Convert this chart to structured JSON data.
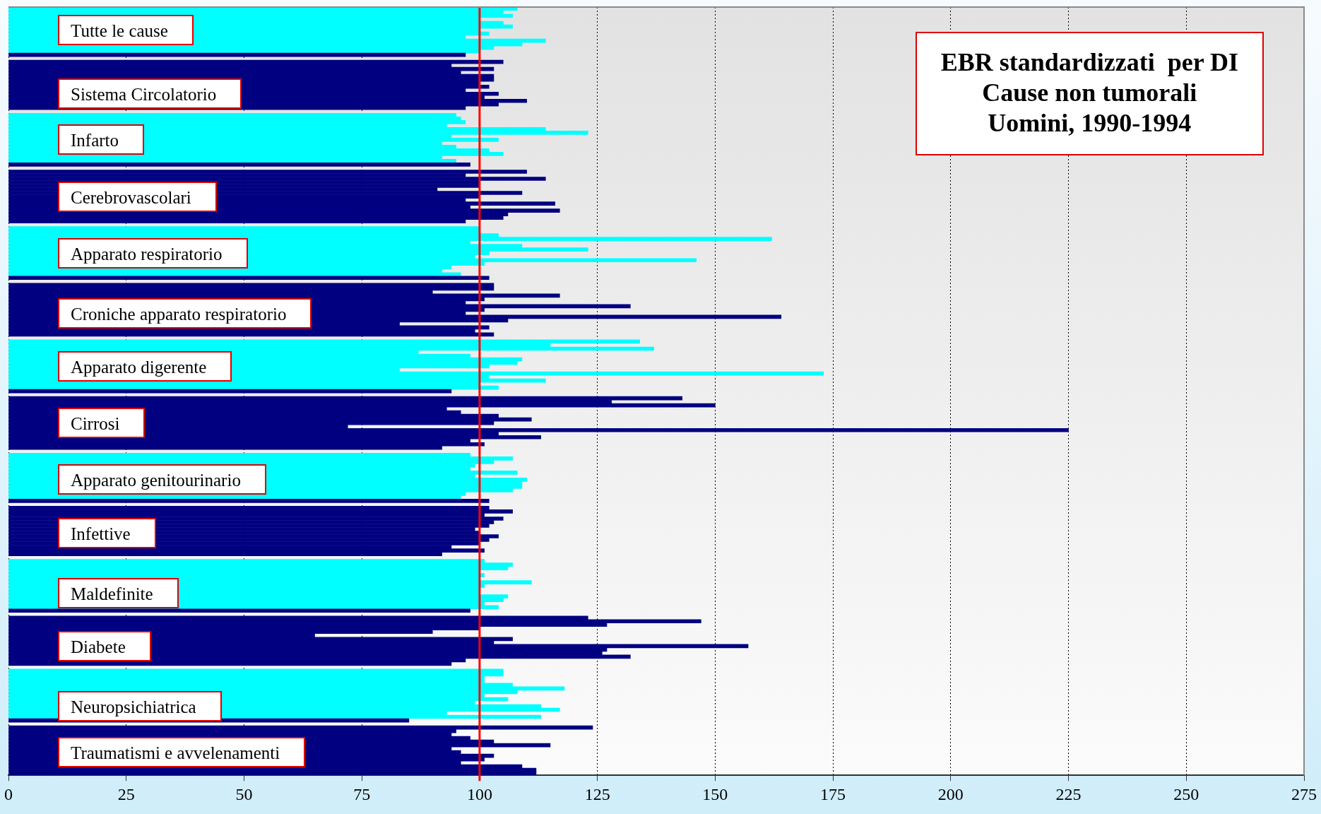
{
  "chart_data": {
    "type": "bar",
    "orientation": "horizontal",
    "title": "EBR standardizzati  per DI\nCause non tumorali\nUomini, 1990-1994",
    "categories": [
      null,
      null,
      null,
      null,
      null,
      null,
      "Tutte le cause",
      null,
      null,
      null,
      null,
      null,
      null,
      null,
      null,
      null,
      null,
      null,
      null,
      null,
      null,
      null,
      null,
      null,
      "Sistema Circolatorio",
      null,
      null,
      null,
      null,
      null,
      null,
      null,
      null,
      null,
      null,
      null,
      null,
      "Infarto",
      null,
      null,
      null,
      null,
      null,
      null,
      null,
      null,
      null,
      null,
      null,
      null,
      null,
      null,
      null,
      "Cerebrovascolari",
      null,
      null,
      null,
      null,
      null,
      null,
      null,
      null,
      null,
      null,
      null,
      null,
      null,
      null,
      null,
      "Apparato respiratorio",
      null,
      null,
      null,
      null,
      null,
      null,
      null,
      null,
      null,
      null,
      null,
      null,
      null,
      null,
      null,
      null,
      "Croniche apparato respiratorio",
      null,
      null,
      null,
      null,
      null,
      null,
      null,
      null,
      null,
      null,
      null,
      null,
      null,
      null,
      "Apparato digerente",
      null,
      null,
      null,
      null,
      null,
      null,
      null,
      null,
      null,
      null,
      null,
      null,
      null,
      null,
      null,
      "Cirrosi",
      null,
      null,
      null,
      null,
      null,
      null,
      null,
      null,
      null,
      null,
      null,
      null,
      null,
      null,
      null,
      "Apparato genitourinario",
      null,
      null,
      null,
      null,
      null,
      null,
      null,
      null,
      null,
      null,
      null,
      null,
      null,
      null,
      "Infettive",
      null,
      null,
      null,
      null,
      null,
      null,
      null,
      null,
      null,
      null,
      null,
      null,
      null,
      null,
      null,
      null,
      "Maldefinite",
      null,
      null,
      null,
      null,
      null,
      null,
      null,
      null,
      null,
      null,
      null,
      null,
      null,
      null,
      "Diabete",
      null,
      null,
      null,
      null,
      null,
      null,
      null,
      null,
      null,
      null,
      null,
      null,
      null,
      null,
      null,
      null,
      "Neuropsichiatrica",
      null,
      null,
      null,
      null,
      null,
      null,
      null,
      null,
      null,
      null,
      null,
      null,
      "Traumatismi e avvelenamenti",
      null,
      null,
      null,
      null,
      null,
      null
    ],
    "values": [
      108,
      105,
      107,
      100,
      105,
      107,
      100,
      102,
      97,
      114,
      109,
      103,
      100,
      97,
      null,
      105,
      94,
      103,
      96,
      103,
      103,
      100,
      102,
      97,
      104,
      101,
      110,
      104,
      97,
      null,
      95,
      96,
      97,
      93,
      114,
      123,
      94,
      104,
      92,
      95,
      102,
      105,
      92,
      95,
      98,
      null,
      110,
      97,
      114,
      100,
      100,
      91,
      109,
      100,
      97,
      116,
      98,
      117,
      106,
      105,
      97,
      null,
      100,
      100,
      104,
      162,
      98,
      109,
      123,
      102,
      99,
      146,
      101,
      94,
      92,
      96,
      102,
      null,
      103,
      103,
      90,
      117,
      101,
      97,
      132,
      101,
      97,
      164,
      106,
      83,
      102,
      99,
      103,
      null,
      134,
      115,
      137,
      87,
      98,
      109,
      108,
      102,
      83,
      173,
      102,
      114,
      100,
      104,
      94,
      null,
      143,
      128,
      150,
      93,
      96,
      104,
      111,
      103,
      72,
      225,
      104,
      113,
      98,
      101,
      92,
      null,
      98,
      107,
      103,
      99,
      98,
      108,
      99,
      110,
      109,
      109,
      107,
      97,
      96,
      102,
      null,
      102,
      107,
      101,
      105,
      103,
      102,
      99,
      100,
      104,
      102,
      100,
      94,
      101,
      92,
      null,
      101,
      107,
      106,
      100,
      101,
      100,
      111,
      101,
      100,
      100,
      106,
      105,
      101,
      104,
      98,
      null,
      123,
      147,
      127,
      100,
      90,
      65,
      107,
      103,
      157,
      127,
      126,
      132,
      97,
      94,
      null,
      105,
      105,
      101,
      101,
      107,
      118,
      108,
      101,
      106,
      99,
      113,
      117,
      93,
      113,
      85,
      null,
      124,
      95,
      94,
      98,
      103,
      115,
      94,
      96,
      103,
      101,
      96,
      109,
      112,
      112
    ],
    "colors": [
      "#00ffff",
      "#00ffff",
      "#00ffff",
      "#00ffff",
      "#00ffff",
      "#00ffff",
      "#00ffff",
      "#00ffff",
      "#00ffff",
      "#00ffff",
      "#00ffff",
      "#00ffff",
      "#00ffff",
      "#000080",
      "#00ffff",
      "#000080",
      "#000080",
      "#000080",
      "#000080",
      "#000080",
      "#000080",
      "#000080",
      "#000080",
      "#000080",
      "#000080",
      "#000080",
      "#000080",
      "#000080",
      "#000080",
      "#000080",
      "#00ffff",
      "#00ffff",
      "#00ffff",
      "#00ffff",
      "#00ffff",
      "#00ffff",
      "#00ffff",
      "#00ffff",
      "#00ffff",
      "#00ffff",
      "#00ffff",
      "#00ffff",
      "#00ffff",
      "#00ffff",
      "#000080",
      "#00ffff",
      "#000080",
      "#000080",
      "#000080",
      "#000080",
      "#000080",
      "#000080",
      "#000080",
      "#000080",
      "#000080",
      "#000080",
      "#000080",
      "#000080",
      "#000080",
      "#000080",
      "#000080",
      "#000080",
      "#00ffff",
      "#00ffff",
      "#00ffff",
      "#00ffff",
      "#00ffff",
      "#00ffff",
      "#00ffff",
      "#00ffff",
      "#00ffff",
      "#00ffff",
      "#00ffff",
      "#00ffff",
      "#00ffff",
      "#00ffff",
      "#000080",
      "#00ffff",
      "#000080",
      "#000080",
      "#000080",
      "#000080",
      "#000080",
      "#000080",
      "#000080",
      "#000080",
      "#000080",
      "#000080",
      "#000080",
      "#000080",
      "#000080",
      "#000080",
      "#000080",
      "#000080",
      "#00ffff",
      "#00ffff",
      "#00ffff",
      "#00ffff",
      "#00ffff",
      "#00ffff",
      "#00ffff",
      "#00ffff",
      "#00ffff",
      "#00ffff",
      "#00ffff",
      "#00ffff",
      "#00ffff",
      "#00ffff",
      "#000080",
      "#00ffff",
      "#000080",
      "#000080",
      "#000080",
      "#000080",
      "#000080",
      "#000080",
      "#000080",
      "#000080",
      "#000080",
      "#000080",
      "#000080",
      "#000080",
      "#000080",
      "#000080",
      "#000080",
      "#000080",
      "#00ffff",
      "#00ffff",
      "#00ffff",
      "#00ffff",
      "#00ffff",
      "#00ffff",
      "#00ffff",
      "#00ffff",
      "#00ffff",
      "#00ffff",
      "#00ffff",
      "#00ffff",
      "#00ffff",
      "#000080",
      "#00ffff",
      "#000080",
      "#000080",
      "#000080",
      "#000080",
      "#000080",
      "#000080",
      "#000080",
      "#000080",
      "#000080",
      "#000080",
      "#000080",
      "#000080",
      "#000080",
      "#000080",
      "#000080",
      "#00ffff",
      "#00ffff",
      "#00ffff",
      "#00ffff",
      "#00ffff",
      "#00ffff",
      "#00ffff",
      "#00ffff",
      "#00ffff",
      "#00ffff",
      "#00ffff",
      "#00ffff",
      "#00ffff",
      "#00ffff",
      "#000080",
      "#00ffff",
      "#000080",
      "#000080",
      "#000080",
      "#000080",
      "#000080",
      "#000080",
      "#000080",
      "#000080",
      "#000080",
      "#000080",
      "#000080",
      "#000080",
      "#000080",
      "#000080",
      "#000080",
      "#00ffff",
      "#00ffff",
      "#00ffff",
      "#00ffff",
      "#00ffff",
      "#00ffff",
      "#00ffff",
      "#00ffff",
      "#00ffff",
      "#00ffff",
      "#00ffff",
      "#00ffff",
      "#00ffff",
      "#00ffff",
      "#000080",
      "#00ffff",
      "#000080",
      "#000080",
      "#000080",
      "#000080",
      "#000080",
      "#000080",
      "#000080",
      "#000080",
      "#000080",
      "#000080",
      "#000080",
      "#000080",
      "#000080",
      "#000080"
    ],
    "xlim": [
      0,
      275
    ],
    "xticks": [
      0,
      25,
      50,
      75,
      100,
      125,
      150,
      175,
      200,
      225,
      250,
      275
    ],
    "grid": "x",
    "legend": false,
    "ref_lines": [
      {
        "axis": "x",
        "value": 100,
        "color": "#ff0000"
      }
    ]
  }
}
